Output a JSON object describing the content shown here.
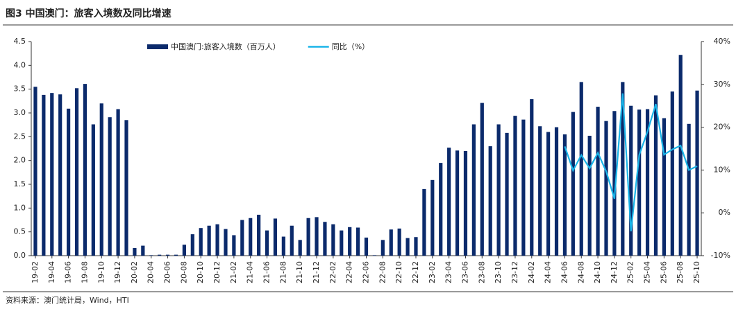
{
  "chart_data": {
    "type": "bar_line",
    "title": "图3  中国澳门：旅客入境数及同比增速",
    "source": "资料来源：澳门统计局，Wind，HTI",
    "categories": [
      "19-02",
      null,
      "19-04",
      null,
      "19-06",
      null,
      "19-08",
      null,
      "19-10",
      null,
      "19-12",
      null,
      "20-02",
      null,
      "20-04",
      null,
      "20-06",
      null,
      "20-08",
      null,
      "20-10",
      null,
      "20-12",
      null,
      "21-02",
      null,
      "21-04",
      null,
      "21-06",
      null,
      "21-08",
      null,
      "21-10",
      null,
      "21-12",
      null,
      "22-02",
      null,
      "22-04",
      null,
      "22-06",
      null,
      "22-08",
      null,
      "22-10",
      null,
      "22-12",
      null,
      "23-02",
      null,
      "23-04",
      null,
      "23-06",
      null,
      "23-08",
      null,
      "23-10",
      null,
      "23-12",
      null,
      "24-02",
      null,
      "24-04",
      null,
      "24-06",
      null,
      "24-08",
      null,
      "24-10",
      null,
      "24-12",
      null,
      "25-02",
      null,
      "25-04",
      null,
      "25-06",
      null,
      "25-08",
      null,
      "25-10"
    ],
    "series": [
      {
        "name": "中国澳门:旅客入境数（百万人）",
        "type": "bar",
        "color": "#0b2a6b",
        "axis": "y",
        "values": [
          3.55,
          3.38,
          3.42,
          3.39,
          3.09,
          3.52,
          3.61,
          2.76,
          3.2,
          2.91,
          3.08,
          2.85,
          0.16,
          0.21,
          0.01,
          0.02,
          0.02,
          0.02,
          0.23,
          0.45,
          0.58,
          0.63,
          0.66,
          0.56,
          0.43,
          0.75,
          0.79,
          0.86,
          0.53,
          0.78,
          0.4,
          0.63,
          0.33,
          0.79,
          0.81,
          0.71,
          0.66,
          0.53,
          0.6,
          0.59,
          0.38,
          0.01,
          0.33,
          0.55,
          0.57,
          0.37,
          0.39,
          1.4,
          1.59,
          1.95,
          2.27,
          2.21,
          2.2,
          2.76,
          3.21,
          2.3,
          2.76,
          2.58,
          2.94,
          2.86,
          3.29,
          2.72,
          2.6,
          2.7,
          2.55,
          3.02,
          3.65,
          2.52,
          3.13,
          2.83,
          3.04,
          3.65,
          3.15,
          3.07,
          3.08,
          3.37,
          2.89,
          3.45,
          4.22,
          2.77,
          3.47
        ]
      },
      {
        "name": "同比（%）",
        "type": "line",
        "color": "#19b4e8",
        "axis": "y2",
        "values": [
          null,
          null,
          null,
          null,
          null,
          null,
          null,
          null,
          null,
          null,
          null,
          null,
          null,
          null,
          null,
          null,
          null,
          null,
          null,
          null,
          null,
          null,
          null,
          null,
          null,
          null,
          null,
          null,
          null,
          null,
          null,
          null,
          null,
          null,
          null,
          null,
          null,
          null,
          null,
          null,
          null,
          null,
          null,
          null,
          null,
          null,
          null,
          null,
          null,
          null,
          null,
          null,
          null,
          null,
          null,
          null,
          null,
          null,
          null,
          null,
          null,
          null,
          null,
          null,
          15.5,
          9.9,
          13.5,
          10.4,
          14,
          9.7,
          3.3,
          27.9,
          -4.3,
          13.5,
          19,
          25.4,
          13.6,
          14.8,
          15.7,
          10,
          10.9
        ]
      }
    ],
    "ylim": [
      0,
      4.5
    ],
    "yticks": [
      {
        "value": 0,
        "label": "0.0"
      },
      {
        "value": 0.5,
        "label": "0.5"
      },
      {
        "value": 1,
        "label": "1.0"
      },
      {
        "value": 1.5,
        "label": "1.5"
      },
      {
        "value": 2,
        "label": "2.0"
      },
      {
        "value": 2.5,
        "label": "2.5"
      },
      {
        "value": 3,
        "label": "3.0"
      },
      {
        "value": 3.5,
        "label": "3.5"
      },
      {
        "value": 4,
        "label": "4.0"
      },
      {
        "value": 4.5,
        "label": "4.5"
      }
    ],
    "y2lim": [
      -10,
      40
    ],
    "y2ticks": [
      {
        "value": -10,
        "label": "-10%"
      },
      {
        "value": 0,
        "label": "0%"
      },
      {
        "value": 10,
        "label": "10%"
      },
      {
        "value": 20,
        "label": "20%"
      },
      {
        "value": 30,
        "label": "30%"
      },
      {
        "value": 40,
        "label": "40%"
      }
    ],
    "legend": "top"
  }
}
